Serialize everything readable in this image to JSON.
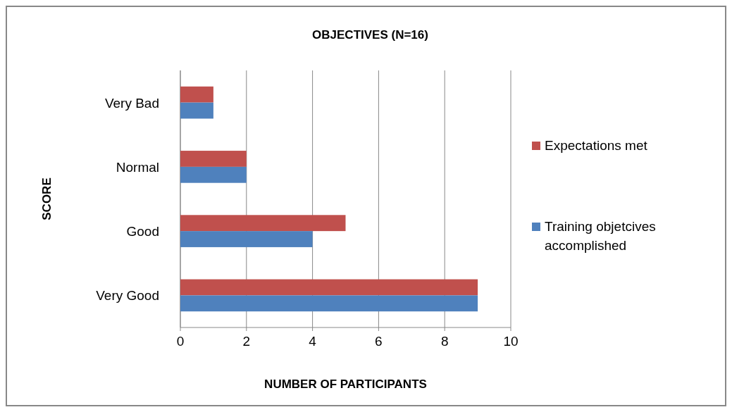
{
  "chart_data": {
    "type": "bar",
    "orientation": "horizontal",
    "title": "OBJECTIVES (N=16)",
    "xlabel": "NUMBER OF PARTICIPANTS",
    "ylabel": "SCORE",
    "categories": [
      "Very Bad",
      "Normal",
      "Good",
      "Very Good"
    ],
    "series": [
      {
        "name": "Expectations met",
        "color": "#c0504d",
        "values": [
          1,
          2,
          5,
          9
        ]
      },
      {
        "name": "Training objetcives accomplished",
        "color": "#4f81bd",
        "values": [
          1,
          2,
          4,
          9
        ]
      }
    ],
    "xlim": [
      0,
      10
    ],
    "xticks": [
      0,
      2,
      4,
      6,
      8,
      10
    ],
    "grid": "x",
    "legend": "right"
  }
}
